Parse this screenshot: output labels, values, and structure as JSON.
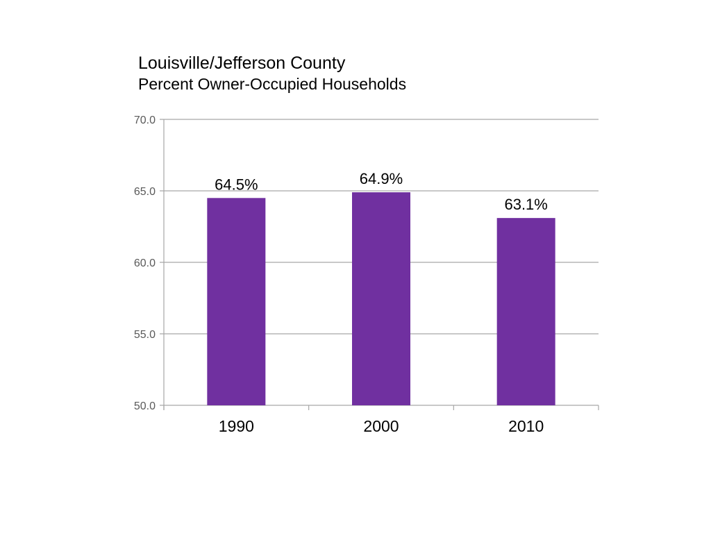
{
  "chart_data": {
    "type": "bar",
    "title": "Louisville/Jefferson County",
    "subtitle": "Percent Owner-Occupied Households",
    "categories": [
      "1990",
      "2000",
      "2010"
    ],
    "values": [
      64.5,
      64.9,
      63.1
    ],
    "data_labels": [
      "64.5%",
      "64.9%",
      "63.1%"
    ],
    "y_ticks": [
      "70.0",
      "65.0",
      "60.0",
      "55.0",
      "50.0"
    ],
    "ylim": [
      50,
      70
    ],
    "grid": true,
    "legend": "none",
    "bar_color": "#7030A0",
    "grid_color": "#A6A6A6"
  }
}
